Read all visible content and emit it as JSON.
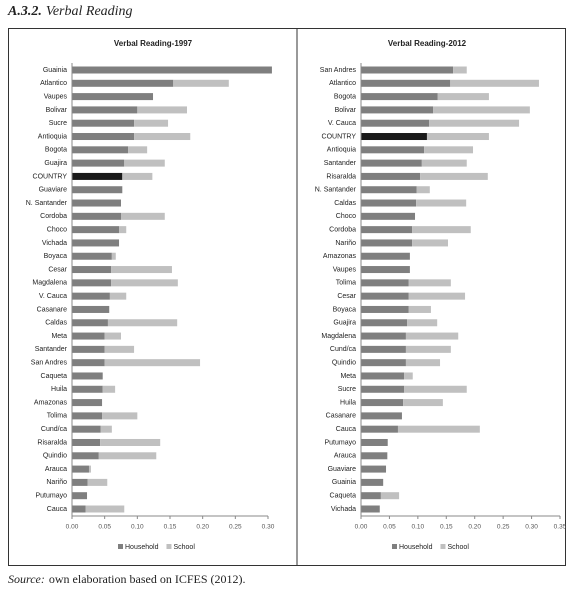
{
  "figure_label": "A.3.2.",
  "figure_title": "Verbal Reading",
  "source_label": "Source:",
  "source_text": "own elaboration based on ICFES (2012).",
  "chart_data": [
    {
      "type": "bar",
      "orientation": "horizontal",
      "stacked": true,
      "title": "Verbal Reading-1997",
      "categories": [
        "Guainia",
        "Atlantico",
        "Vaupes",
        "Bolivar",
        "Sucre",
        "Antioquia",
        "Bogota",
        "Guajira",
        "COUNTRY",
        "Guaviare",
        "N. Santander",
        "Cordoba",
        "Choco",
        "Vichada",
        "Boyaca",
        "Cesar",
        "Magdalena",
        "V. Cauca",
        "Casanare",
        "Caldas",
        "Meta",
        "Santander",
        "San Andres",
        "Caqueta",
        "Huila",
        "Amazonas",
        "Tolima",
        "Cund/ca",
        "Risaralda",
        "Quindio",
        "Arauca",
        "Nariño",
        "Putumayo",
        "Cauca"
      ],
      "series": [
        {
          "name": "Household",
          "color": "#7f7f7f",
          "values": [
            0.306,
            0.155,
            0.124,
            0.1,
            0.095,
            0.095,
            0.086,
            0.08,
            0.077,
            0.077,
            0.075,
            0.075,
            0.072,
            0.072,
            0.061,
            0.06,
            0.06,
            0.058,
            0.057,
            0.055,
            0.05,
            0.05,
            0.05,
            0.047,
            0.047,
            0.046,
            0.046,
            0.044,
            0.043,
            0.041,
            0.026,
            0.024,
            0.023,
            0.021
          ]
        },
        {
          "name": "School",
          "color": "#c0c0c0",
          "values": [
            0,
            0.085,
            0,
            0.076,
            0.052,
            0.086,
            0.029,
            0.062,
            0.046,
            0,
            0,
            0.067,
            0.011,
            0,
            0.006,
            0.093,
            0.102,
            0.025,
            0,
            0.106,
            0.025,
            0.045,
            0.146,
            0,
            0.019,
            0,
            0.054,
            0.017,
            0.092,
            0.088,
            0.003,
            0.03,
            0,
            0.059
          ]
        }
      ],
      "highlight": {
        "index": 8,
        "color": "#1a1a1a"
      },
      "xlim": [
        0,
        0.3
      ],
      "xticks": [
        {
          "value": 0,
          "label": "0.00"
        },
        {
          "value": 0.05,
          "label": "0.05"
        },
        {
          "value": 0.1,
          "label": "0.10"
        },
        {
          "value": 0.15,
          "label": "0.15"
        },
        {
          "value": 0.2,
          "label": "0.20"
        },
        {
          "value": 0.25,
          "label": "0.25"
        },
        {
          "value": 0.3,
          "label": "0.30"
        }
      ],
      "grid": false,
      "legend": "bottom"
    },
    {
      "type": "bar",
      "orientation": "horizontal",
      "stacked": true,
      "title": "Verbal Reading-2012",
      "categories": [
        "San Andres",
        "Atlantico",
        "Bogota",
        "Bolivar",
        "V. Cauca",
        "COUNTRY",
        "Antioquia",
        "Santander",
        "Risaralda",
        "N. Santander",
        "Caldas",
        "Choco",
        "Cordoba",
        "Nariño",
        "Amazonas",
        "Vaupes",
        "Tolima",
        "Cesar",
        "Boyaca",
        "Guajira",
        "Magdalena",
        "Cund/ca",
        "Quindio",
        "Meta",
        "Sucre",
        "Huila",
        "Casanare",
        "Cauca",
        "Putumayo",
        "Arauca",
        "Guaviare",
        "Guainia",
        "Caqueta",
        "Vichada"
      ],
      "series": [
        {
          "name": "Household",
          "color": "#7f7f7f",
          "values": [
            0.162,
            0.157,
            0.135,
            0.127,
            0.12,
            0.116,
            0.111,
            0.107,
            0.104,
            0.098,
            0.097,
            0.095,
            0.09,
            0.09,
            0.086,
            0.086,
            0.084,
            0.084,
            0.084,
            0.081,
            0.079,
            0.079,
            0.079,
            0.076,
            0.076,
            0.074,
            0.072,
            0.065,
            0.047,
            0.046,
            0.044,
            0.039,
            0.035,
            0.033
          ]
        },
        {
          "name": "School",
          "color": "#c0c0c0",
          "values": [
            0.024,
            0.156,
            0.09,
            0.17,
            0.158,
            0.109,
            0.086,
            0.079,
            0.119,
            0.023,
            0.088,
            0,
            0.103,
            0.063,
            0,
            0,
            0.074,
            0.099,
            0.039,
            0.053,
            0.092,
            0.079,
            0.06,
            0.015,
            0.11,
            0.07,
            0,
            0.144,
            0,
            0.001,
            0,
            0,
            0.032,
            0
          ]
        }
      ],
      "highlight": {
        "index": 5,
        "color": "#1a1a1a"
      },
      "xlim": [
        0,
        0.35
      ],
      "xticks": [
        {
          "value": 0,
          "label": "0.00"
        },
        {
          "value": 0.05,
          "label": "0.05"
        },
        {
          "value": 0.1,
          "label": "0.10"
        },
        {
          "value": 0.15,
          "label": "0.15"
        },
        {
          "value": 0.2,
          "label": "0.20"
        },
        {
          "value": 0.25,
          "label": "0.25"
        },
        {
          "value": 0.3,
          "label": "0.30"
        },
        {
          "value": 0.35,
          "label": "0.35"
        }
      ],
      "grid": false,
      "legend": "bottom"
    }
  ]
}
